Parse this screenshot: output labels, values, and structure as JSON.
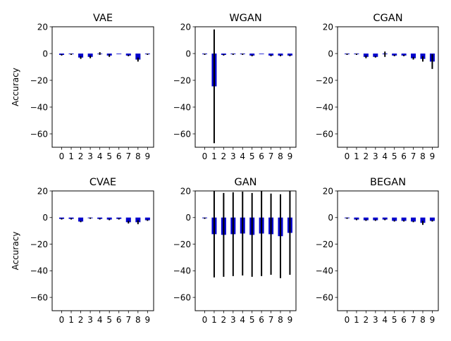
{
  "chart_data": [
    {
      "type": "bar",
      "title": "VAE",
      "ylabel": "Accuracy",
      "ylim": [
        -70,
        20
      ],
      "yticks": [
        20,
        0,
        -20,
        -40,
        -60
      ],
      "categories": [
        "0",
        "1",
        "2",
        "3",
        "4",
        "5",
        "6",
        "7",
        "8",
        "9"
      ],
      "values": [
        -1,
        -0.5,
        -3,
        -2.5,
        0,
        -1.5,
        0,
        -1.5,
        -4.5,
        -0.5
      ],
      "errors": [
        0.5,
        0.5,
        1,
        1,
        1,
        1,
        0,
        0.5,
        1.5,
        0.5
      ],
      "color": "#0000cd"
    },
    {
      "type": "bar",
      "title": "WGAN",
      "ylabel": "",
      "ylim": [
        -70,
        20
      ],
      "yticks": [
        20,
        0,
        -20,
        -40,
        -60
      ],
      "categories": [
        "0",
        "1",
        "2",
        "3",
        "4",
        "5",
        "6",
        "7",
        "8",
        "9"
      ],
      "values": [
        -0.5,
        -24.5,
        -1,
        -0.5,
        -0.5,
        -1.5,
        0,
        -1.5,
        -1.5,
        -1.5
      ],
      "errors": [
        0.5,
        42.5,
        0.5,
        0.5,
        0.5,
        0.5,
        0,
        0.5,
        0.5,
        0.5
      ],
      "color": "#0000cd"
    },
    {
      "type": "bar",
      "title": "CGAN",
      "ylabel": "",
      "ylim": [
        -70,
        20
      ],
      "yticks": [
        20,
        0,
        -20,
        -40,
        -60
      ],
      "categories": [
        "0",
        "1",
        "2",
        "3",
        "4",
        "5",
        "6",
        "7",
        "8",
        "9"
      ],
      "values": [
        -0.5,
        -0.5,
        -2.5,
        -2.5,
        -0.5,
        -1.5,
        -1.5,
        -3.5,
        -4,
        -6
      ],
      "errors": [
        0.5,
        0.5,
        1,
        0.5,
        2,
        0.5,
        0.5,
        1,
        2,
        5.5
      ],
      "color": "#0000cd"
    },
    {
      "type": "bar",
      "title": "CVAE",
      "ylabel": "Accuracy",
      "ylim": [
        -70,
        20
      ],
      "yticks": [
        20,
        0,
        -20,
        -40,
        -60
      ],
      "categories": [
        "0",
        "1",
        "2",
        "3",
        "4",
        "5",
        "6",
        "7",
        "8",
        "9"
      ],
      "values": [
        -1,
        -1,
        -3,
        -0.5,
        -1,
        -1.5,
        -1,
        -3.5,
        -3.5,
        -2
      ],
      "errors": [
        0.5,
        0.5,
        0.5,
        0.5,
        0.5,
        0.5,
        0.5,
        1,
        1.5,
        0.5
      ],
      "color": "#0000cd"
    },
    {
      "type": "bar",
      "title": "GAN",
      "ylabel": "",
      "ylim": [
        -70,
        20
      ],
      "yticks": [
        20,
        0,
        -20,
        -40,
        -60
      ],
      "categories": [
        "0",
        "1",
        "2",
        "3",
        "4",
        "5",
        "6",
        "7",
        "8",
        "9"
      ],
      "values": [
        -0.5,
        -12.5,
        -13,
        -12.5,
        -12,
        -13,
        -12,
        -12.5,
        -14,
        -11.5
      ],
      "errors": [
        0.5,
        32.5,
        31.5,
        31.5,
        31.5,
        31.5,
        32,
        30.5,
        31.5,
        31.5
      ],
      "color": "#0000cd"
    },
    {
      "type": "bar",
      "title": "BEGAN",
      "ylabel": "",
      "ylim": [
        -70,
        20
      ],
      "yticks": [
        20,
        0,
        -20,
        -40,
        -60
      ],
      "categories": [
        "0",
        "1",
        "2",
        "3",
        "4",
        "5",
        "6",
        "7",
        "8",
        "9"
      ],
      "values": [
        -0.5,
        -1.5,
        -2,
        -2,
        -1.5,
        -2.5,
        -2.5,
        -3,
        -4,
        -2.5
      ],
      "errors": [
        0.5,
        0.5,
        0.5,
        0.5,
        0.5,
        0.5,
        0.5,
        0.5,
        1.5,
        0.5
      ],
      "color": "#0000cd"
    }
  ]
}
